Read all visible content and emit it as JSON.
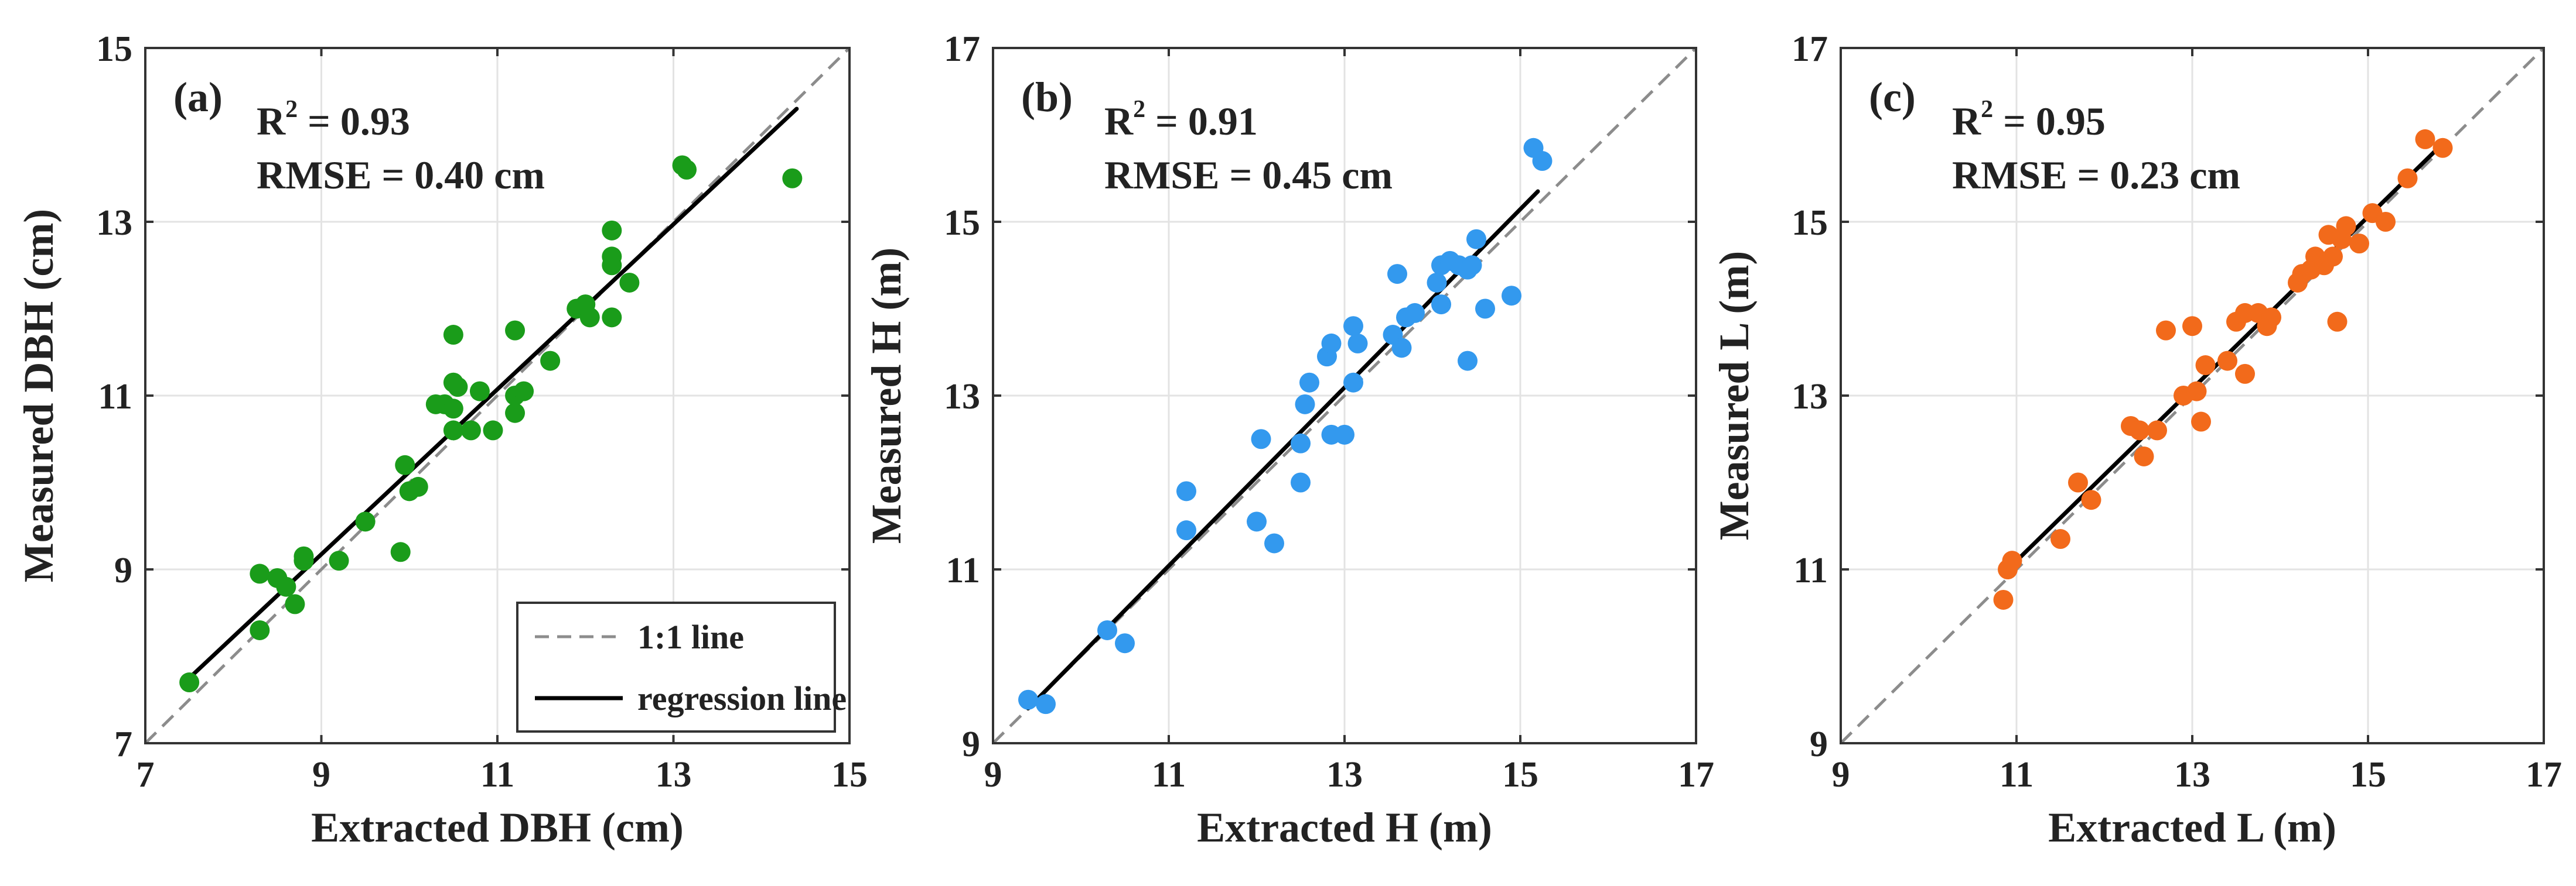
{
  "chart_data": [
    {
      "type": "scatter",
      "panel": "(a)",
      "xlabel": "Extracted DBH (cm)",
      "ylabel": "Measured DBH (cm)",
      "xlim": [
        7,
        15
      ],
      "ylim": [
        7,
        15
      ],
      "xticks": [
        "7",
        "9",
        "11",
        "13",
        "15"
      ],
      "yticks": [
        "7",
        "9",
        "11",
        "13",
        "15"
      ],
      "grid": true,
      "stats": {
        "r2_label": "R",
        "r2_sup": "2",
        "r2_value": " = 0.93",
        "rmse": "RMSE = 0.40 cm"
      },
      "point_color": "#1a9c1a",
      "regression": {
        "x": [
          7.5,
          14.4
        ],
        "y": [
          7.75,
          14.3
        ]
      },
      "legend": {
        "position": "bottom-right",
        "entries": [
          {
            "label": "1:1 line",
            "style": "dashed",
            "color": "#8c8c8c"
          },
          {
            "label": "regression line",
            "style": "solid",
            "color": "#000000"
          }
        ]
      },
      "points": [
        [
          7.5,
          7.7
        ],
        [
          8.3,
          8.95
        ],
        [
          8.3,
          8.3
        ],
        [
          8.5,
          8.9
        ],
        [
          8.6,
          8.8
        ],
        [
          8.7,
          8.6
        ],
        [
          8.8,
          9.15
        ],
        [
          8.8,
          9.1
        ],
        [
          9.2,
          9.1
        ],
        [
          9.5,
          9.55
        ],
        [
          9.9,
          9.2
        ],
        [
          9.95,
          10.2
        ],
        [
          10.0,
          9.9
        ],
        [
          10.1,
          9.95
        ],
        [
          10.3,
          10.9
        ],
        [
          10.4,
          10.9
        ],
        [
          10.5,
          11.7
        ],
        [
          10.5,
          11.15
        ],
        [
          10.55,
          11.1
        ],
        [
          10.5,
          10.6
        ],
        [
          10.5,
          10.85
        ],
        [
          10.7,
          10.6
        ],
        [
          10.8,
          11.05
        ],
        [
          10.95,
          10.6
        ],
        [
          11.2,
          10.8
        ],
        [
          11.2,
          11.75
        ],
        [
          11.2,
          11.0
        ],
        [
          11.3,
          11.05
        ],
        [
          11.6,
          11.4
        ],
        [
          11.9,
          12.0
        ],
        [
          12.0,
          12.05
        ],
        [
          12.05,
          11.9
        ],
        [
          12.3,
          12.6
        ],
        [
          12.3,
          12.5
        ],
        [
          12.3,
          11.9
        ],
        [
          12.3,
          12.9
        ],
        [
          12.5,
          12.3
        ],
        [
          13.1,
          13.65
        ],
        [
          13.15,
          13.6
        ],
        [
          14.35,
          13.5
        ]
      ]
    },
    {
      "type": "scatter",
      "panel": "(b)",
      "xlabel": "Extracted H (m)",
      "ylabel": "Measured H (m)",
      "xlim": [
        9,
        17
      ],
      "ylim": [
        9,
        17
      ],
      "xticks": [
        "9",
        "11",
        "13",
        "15",
        "17"
      ],
      "yticks": [
        "9",
        "11",
        "13",
        "15",
        "17"
      ],
      "grid": true,
      "stats": {
        "r2_label": "R",
        "r2_sup": "2",
        "r2_value": " = 0.91",
        "rmse": "RMSE = 0.45 cm"
      },
      "point_color": "#3399ee",
      "regression": {
        "x": [
          9.4,
          15.2
        ],
        "y": [
          9.4,
          15.35
        ]
      },
      "points": [
        [
          9.4,
          9.5
        ],
        [
          9.6,
          9.45
        ],
        [
          10.3,
          10.3
        ],
        [
          10.5,
          10.15
        ],
        [
          11.2,
          11.9
        ],
        [
          11.2,
          11.45
        ],
        [
          12.0,
          11.55
        ],
        [
          12.05,
          12.5
        ],
        [
          12.2,
          11.3
        ],
        [
          12.5,
          12.0
        ],
        [
          12.5,
          12.45
        ],
        [
          12.55,
          12.9
        ],
        [
          12.6,
          13.15
        ],
        [
          12.8,
          13.45
        ],
        [
          12.85,
          13.6
        ],
        [
          12.85,
          12.55
        ],
        [
          13.0,
          12.55
        ],
        [
          13.1,
          13.15
        ],
        [
          13.1,
          13.8
        ],
        [
          13.15,
          13.6
        ],
        [
          13.55,
          13.7
        ],
        [
          13.6,
          14.4
        ],
        [
          13.65,
          13.55
        ],
        [
          13.7,
          13.9
        ],
        [
          13.8,
          13.95
        ],
        [
          14.05,
          14.3
        ],
        [
          14.1,
          14.05
        ],
        [
          14.1,
          14.5
        ],
        [
          14.2,
          14.55
        ],
        [
          14.3,
          14.5
        ],
        [
          14.4,
          14.45
        ],
        [
          14.4,
          13.4
        ],
        [
          14.45,
          14.5
        ],
        [
          14.5,
          14.8
        ],
        [
          14.6,
          14.0
        ],
        [
          14.9,
          14.15
        ],
        [
          15.15,
          15.85
        ],
        [
          15.25,
          15.7
        ]
      ]
    },
    {
      "type": "scatter",
      "panel": "(c)",
      "xlabel": "Extracted L (m)",
      "ylabel": "Measured L (m)",
      "xlim": [
        9,
        17
      ],
      "ylim": [
        9,
        17
      ],
      "xticks": [
        "9",
        "11",
        "13",
        "15",
        "17"
      ],
      "yticks": [
        "9",
        "11",
        "13",
        "15",
        "17"
      ],
      "grid": true,
      "stats": {
        "r2_label": "R",
        "r2_sup": "2",
        "r2_value": " = 0.95",
        "rmse": "RMSE = 0.23 cm"
      },
      "point_color": "#f26a1b",
      "regression": {
        "x": [
          10.85,
          15.8
        ],
        "y": [
          10.95,
          15.85
        ]
      },
      "points": [
        [
          10.85,
          10.65
        ],
        [
          10.9,
          11.0
        ],
        [
          10.95,
          11.1
        ],
        [
          11.5,
          11.35
        ],
        [
          11.7,
          12.0
        ],
        [
          11.85,
          11.8
        ],
        [
          12.3,
          12.65
        ],
        [
          12.4,
          12.6
        ],
        [
          12.45,
          12.3
        ],
        [
          12.6,
          12.6
        ],
        [
          12.7,
          13.75
        ],
        [
          12.9,
          13.0
        ],
        [
          13.0,
          13.8
        ],
        [
          13.05,
          13.05
        ],
        [
          13.1,
          12.7
        ],
        [
          13.15,
          13.35
        ],
        [
          13.4,
          13.4
        ],
        [
          13.5,
          13.85
        ],
        [
          13.6,
          13.95
        ],
        [
          13.6,
          13.25
        ],
        [
          13.75,
          13.95
        ],
        [
          13.85,
          13.8
        ],
        [
          13.9,
          13.9
        ],
        [
          14.2,
          14.3
        ],
        [
          14.25,
          14.4
        ],
        [
          14.35,
          14.45
        ],
        [
          14.4,
          14.6
        ],
        [
          14.5,
          14.5
        ],
        [
          14.55,
          14.85
        ],
        [
          14.6,
          14.6
        ],
        [
          14.65,
          13.85
        ],
        [
          14.7,
          14.8
        ],
        [
          14.75,
          14.95
        ],
        [
          14.9,
          14.75
        ],
        [
          15.05,
          15.1
        ],
        [
          15.2,
          15.0
        ],
        [
          15.45,
          15.5
        ],
        [
          15.65,
          15.95
        ],
        [
          15.85,
          15.85
        ]
      ]
    }
  ]
}
